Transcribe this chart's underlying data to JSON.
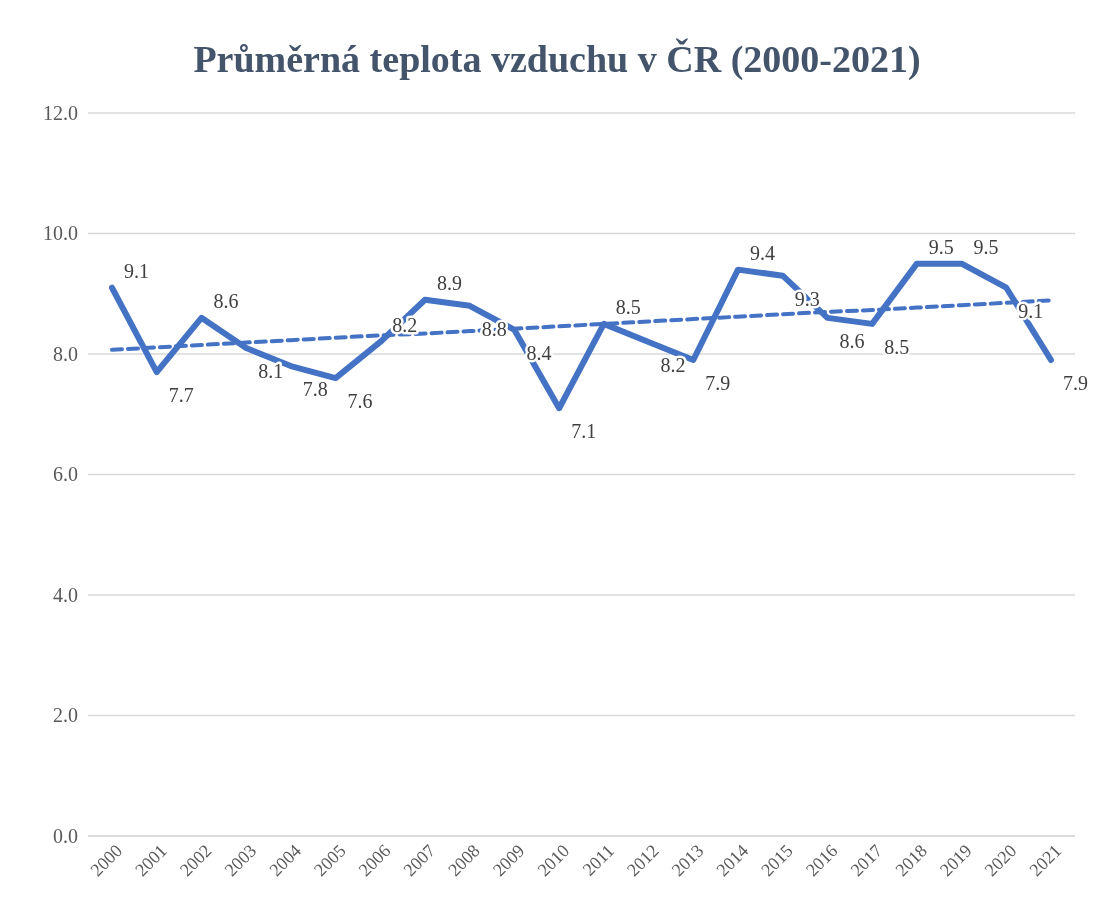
{
  "chart_data": {
    "type": "line",
    "title": "Průměrná teplota vzduchu v ČR (2000-2021)",
    "categories": [
      "2000",
      "2001",
      "2002",
      "2003",
      "2004",
      "2005",
      "2006",
      "2007",
      "2008",
      "2009",
      "2010",
      "2011",
      "2012",
      "2013",
      "2014",
      "2015",
      "2016",
      "2017",
      "2018",
      "2019",
      "2020",
      "2021"
    ],
    "series": [
      {
        "color": "#4472c4",
        "line_style": "solid",
        "values": [
          9.1,
          7.7,
          8.6,
          8.1,
          7.8,
          7.6,
          8.2,
          8.9,
          8.8,
          8.4,
          7.1,
          8.5,
          8.2,
          7.9,
          9.4,
          9.3,
          8.6,
          8.5,
          9.5,
          9.5,
          9.1,
          7.9
        ],
        "value_labels": [
          "9.1",
          "7.7",
          "8.6",
          "8.1",
          "7.8",
          "7.6",
          "8.2",
          "8.9",
          "8.8",
          "8.4",
          "7.1",
          "8.5",
          "8.2",
          "7.9",
          "9.4",
          "9.3",
          "8.6",
          "8.5",
          "9.5",
          "9.5",
          "9.1",
          "7.9"
        ]
      },
      {
        "color": "#4472c4",
        "line_style": "dashed",
        "values": [
          8.07,
          8.11,
          8.15,
          8.19,
          8.23,
          8.27,
          8.31,
          8.34,
          8.38,
          8.42,
          8.46,
          8.5,
          8.54,
          8.58,
          8.62,
          8.66,
          8.7,
          8.73,
          8.77,
          8.81,
          8.85,
          8.89
        ]
      }
    ],
    "ylim": [
      0,
      12
    ],
    "yticks": [
      {
        "value": 0,
        "label": "0.0"
      },
      {
        "value": 2,
        "label": "2.0"
      },
      {
        "value": 4,
        "label": "4.0"
      },
      {
        "value": 6,
        "label": "6.0"
      },
      {
        "value": 8,
        "label": "8.0"
      },
      {
        "value": 10,
        "label": "10.0"
      },
      {
        "value": 12,
        "label": "12.0"
      }
    ],
    "grid": "y",
    "marker": "none"
  }
}
